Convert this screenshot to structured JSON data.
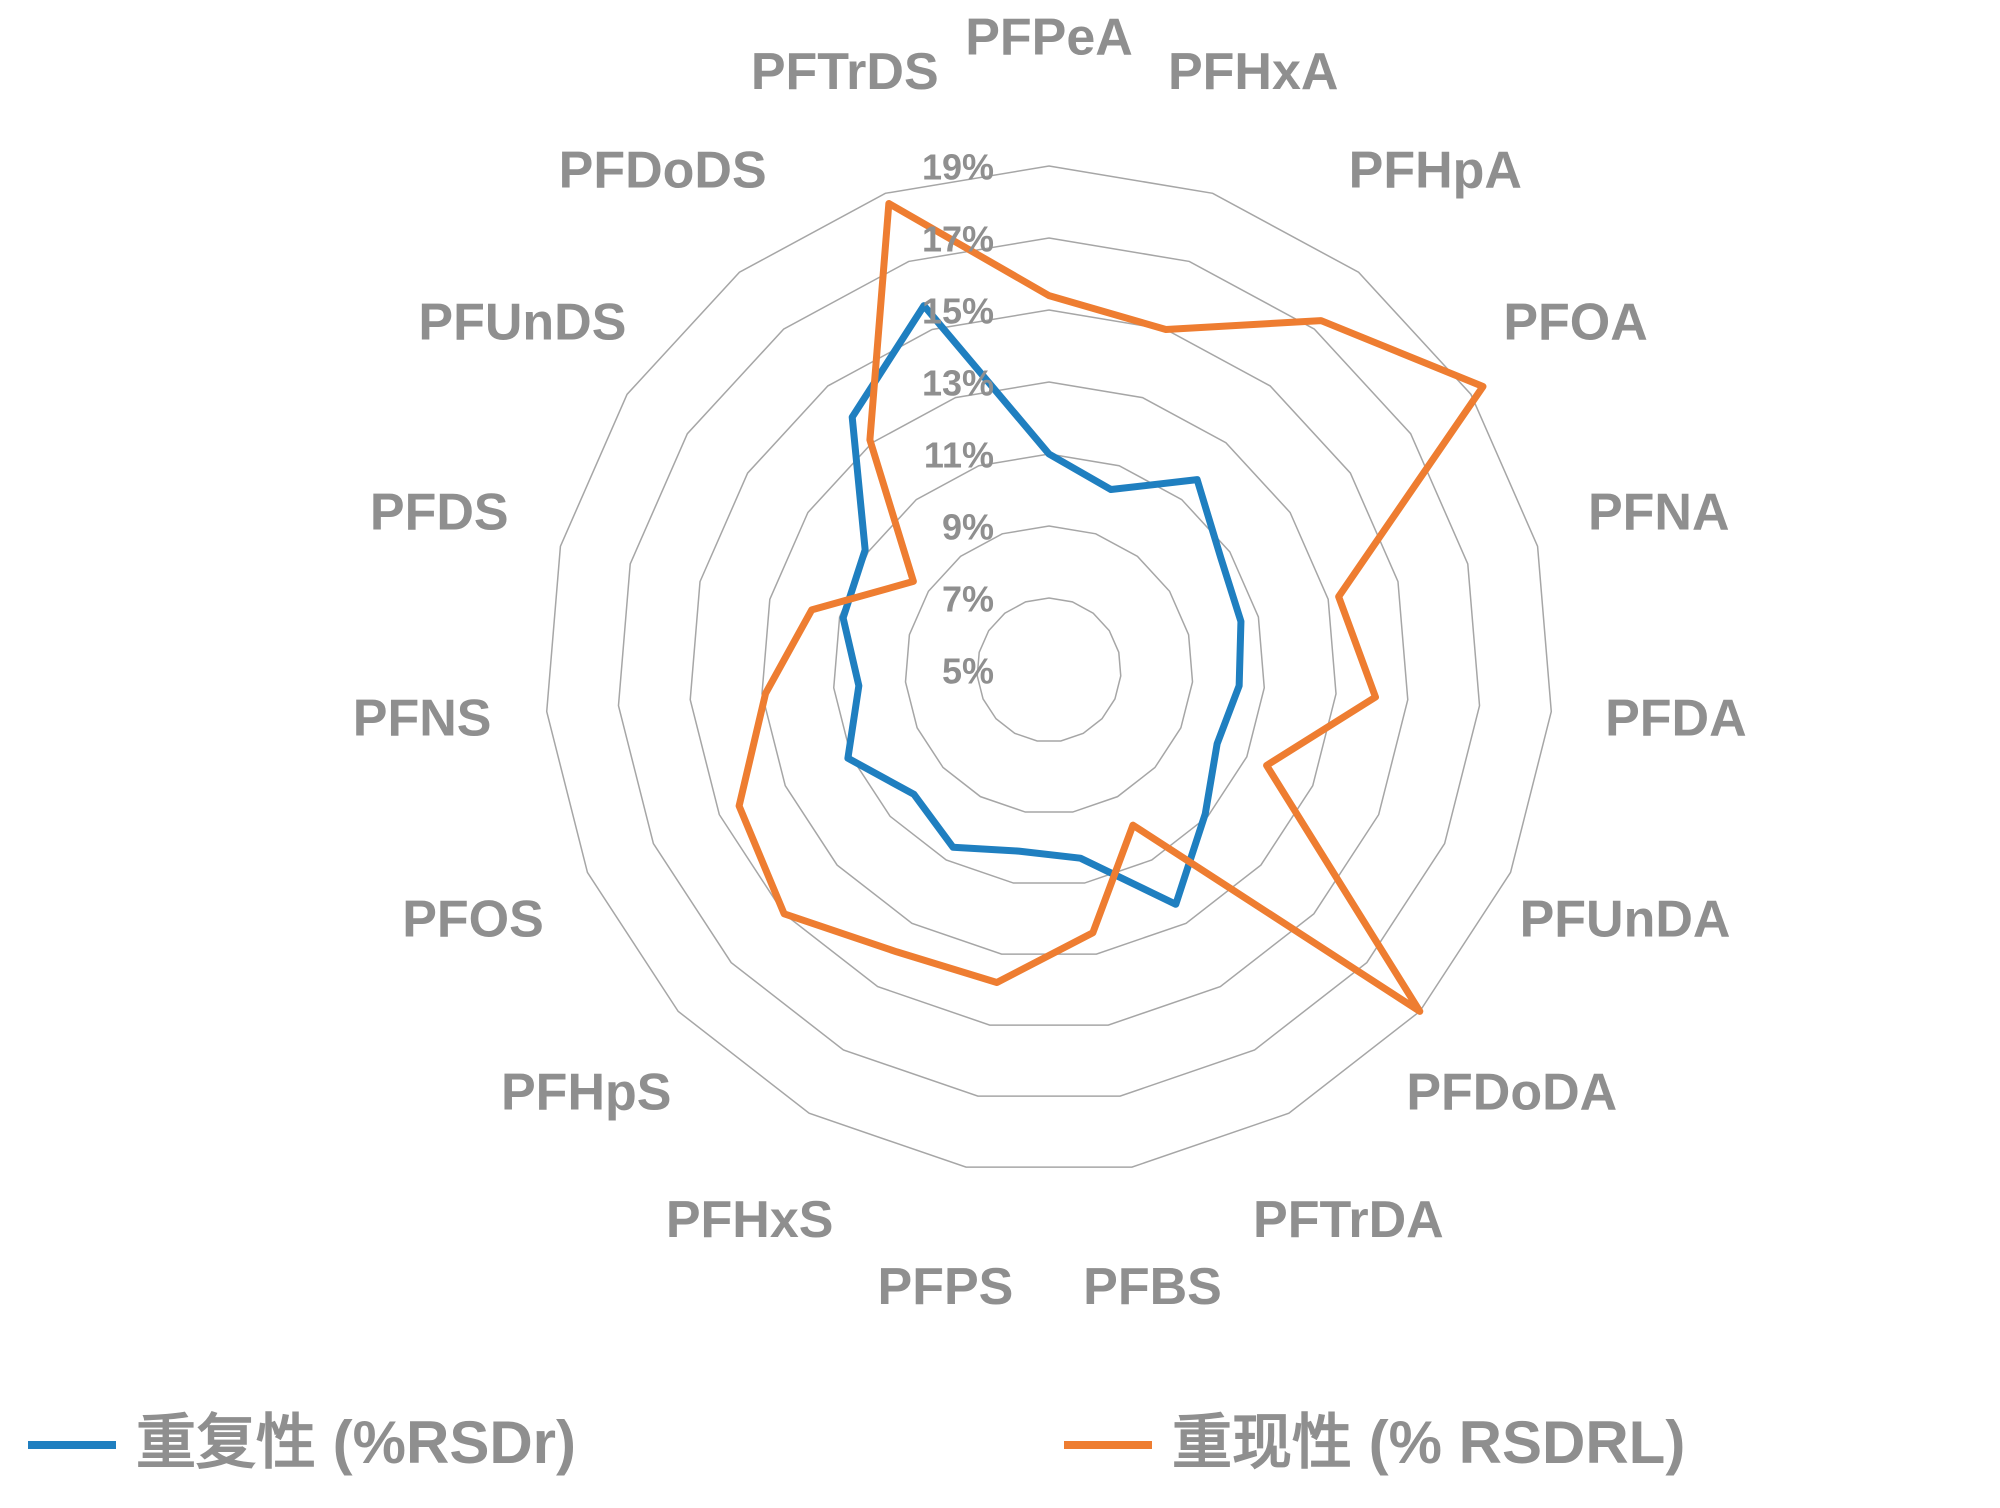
{
  "chart_data": {
    "type": "radar",
    "categories": [
      "PFPeA",
      "PFHxA",
      "PFHpA",
      "PFOA",
      "PFNA",
      "PFDA",
      "PFUnDA",
      "PFDoDA",
      "PFTrDA",
      "PFBS",
      "PFPS",
      "PFHxS",
      "PFHpS",
      "PFOS",
      "PFNS",
      "PFDS",
      "PFUnDS",
      "PFDoDS",
      "PFTrDS"
    ],
    "series": [
      {
        "name": "重复性 (%RSDr)",
        "color": "#1f7fc0",
        "values": [
          11.0,
          10.3,
          11.7,
          10.7,
          10.5,
          10.3,
          10.1,
          10.9,
          12.4,
          10.3,
          10.1,
          10.6,
          10.1,
          11.1,
          10.3,
          10.9,
          11.1,
          13.9,
          15.7
        ]
      },
      {
        "name": "重现性 (% RSDRL)",
        "color": "#ee7d31",
        "values": [
          15.4,
          15.0,
          17.3,
          19.4,
          13.3,
          14.1,
          11.6,
          19.0,
          9.9,
          12.4,
          13.8,
          13.9,
          15.0,
          14.4,
          12.9,
          11.8,
          9.5,
          13.1,
          18.7
        ]
      }
    ],
    "ylim": [
      5,
      19
    ],
    "yticks": [
      {
        "value": 5,
        "label": "5%"
      },
      {
        "value": 7,
        "label": "7%"
      },
      {
        "value": 9,
        "label": "9%"
      },
      {
        "value": 11,
        "label": "11%"
      },
      {
        "value": 13,
        "label": "13%"
      },
      {
        "value": 15,
        "label": "15%"
      },
      {
        "value": 17,
        "label": "17%"
      },
      {
        "value": 19,
        "label": "19%"
      }
    ],
    "grid": true,
    "legend": "bottom"
  }
}
